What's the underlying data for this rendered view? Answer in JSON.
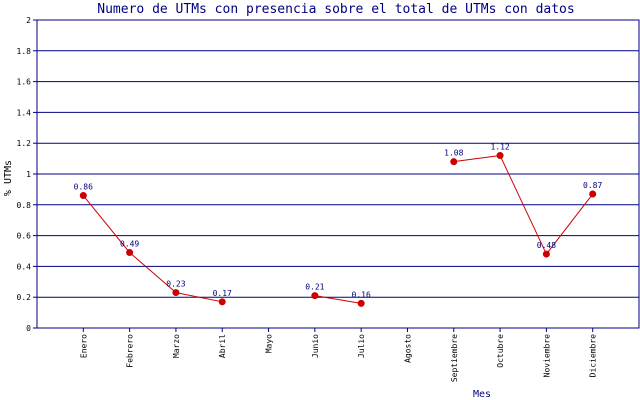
{
  "chart_data": {
    "type": "line",
    "title": "Numero de UTMs con presencia sobre el total de UTMs con datos",
    "xlabel": "Mes",
    "ylabel": "% UTMs",
    "ylim": [
      0,
      2
    ],
    "yticks": [
      "0",
      "0.2",
      "0.4",
      "0.6",
      "0.8",
      "1",
      "1.2",
      "1.4",
      "1.6",
      "1.8",
      "2"
    ],
    "grid": true,
    "categories": [
      "Enero",
      "Febrero",
      "Marzo",
      "Abril",
      "Mayo",
      "Junio",
      "Julio",
      "Agosto",
      "Septiembre",
      "Octubre",
      "Noviembre",
      "Diciembre"
    ],
    "values": [
      0.86,
      0.49,
      0.23,
      0.17,
      null,
      0.21,
      0.16,
      null,
      1.08,
      1.12,
      0.48,
      0.87
    ],
    "value_labels": [
      "0.86",
      "0.49",
      "0.23",
      "0.17",
      "",
      "0.21",
      "0.16",
      "",
      "1.08",
      "1.12",
      "0.48",
      "0.87"
    ],
    "colors": {
      "title": "#000080",
      "grid": "#000080",
      "line": "#cc0000",
      "point": "#cc0000",
      "axis_text": "#000000",
      "label_text": "#000080"
    }
  }
}
